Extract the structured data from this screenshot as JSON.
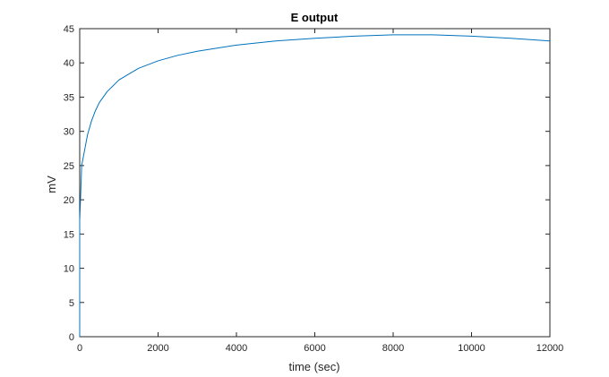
{
  "chart_data": {
    "type": "line",
    "title": "E output",
    "xlabel": "time (sec)",
    "ylabel": "mV",
    "xlim": [
      0,
      12000
    ],
    "ylim": [
      0,
      45
    ],
    "xticks": [
      0,
      2000,
      4000,
      6000,
      8000,
      10000,
      12000
    ],
    "yticks": [
      0,
      5,
      10,
      15,
      20,
      25,
      30,
      35,
      40,
      45
    ],
    "grid": false,
    "line_color": "#0072bd",
    "series": [
      {
        "x": [
          0,
          0,
          20,
          50,
          100,
          150,
          200,
          300,
          400,
          500,
          700,
          1000,
          1500,
          2000,
          2500,
          3000,
          4000,
          5000,
          6000,
          7000,
          8000,
          9000,
          10000,
          11000,
          12000
        ],
        "y": [
          0,
          17,
          20,
          25,
          26.5,
          28,
          29.5,
          31.5,
          33,
          34.2,
          35.8,
          37.5,
          39.2,
          40.3,
          41.1,
          41.7,
          42.6,
          43.2,
          43.6,
          43.9,
          44.1,
          44.1,
          43.9,
          43.6,
          43.2
        ]
      }
    ]
  }
}
